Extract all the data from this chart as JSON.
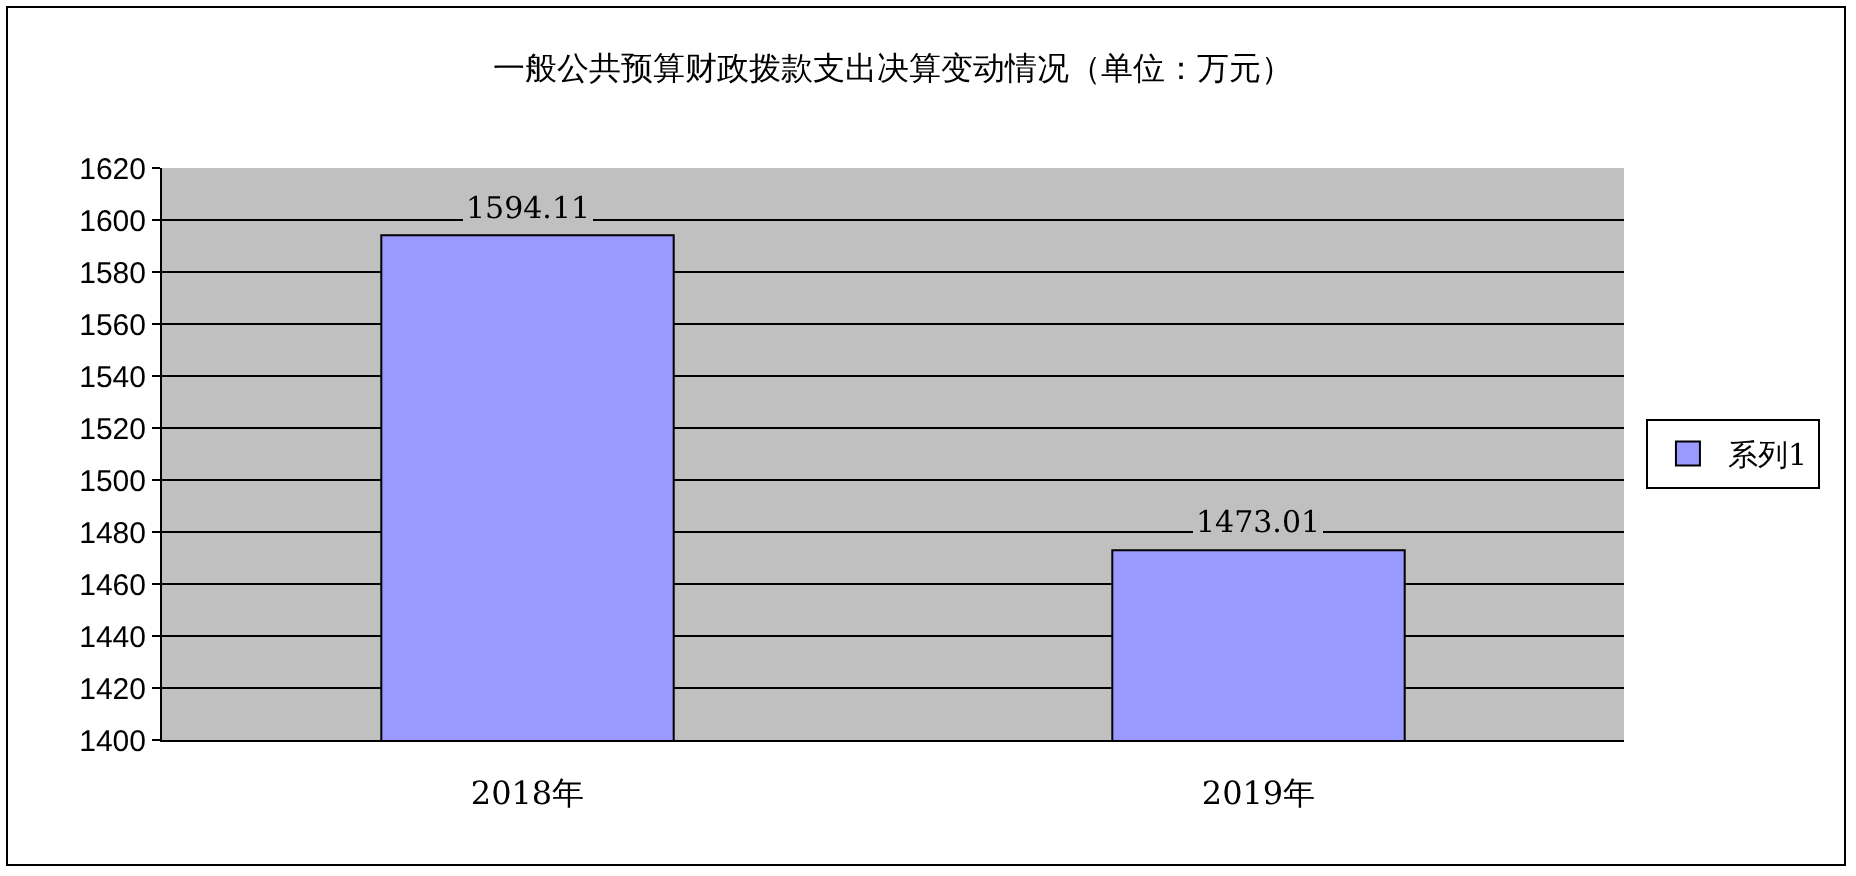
{
  "chart_data": {
    "type": "bar",
    "title": "一般公共预算财政拨款支出决算变动情况（单位：万元）",
    "categories": [
      "2018年",
      "2019年"
    ],
    "series": [
      {
        "name": "系列1",
        "color": "#9999ff",
        "values": [
          1594.11,
          1473.01
        ]
      }
    ],
    "ylim": [
      1400,
      1620
    ],
    "yticks": [
      1400,
      1420,
      1440,
      1460,
      1480,
      1500,
      1520,
      1540,
      1560,
      1580,
      1600,
      1620
    ],
    "grid": "y",
    "legend": "right",
    "data_labels": true
  }
}
